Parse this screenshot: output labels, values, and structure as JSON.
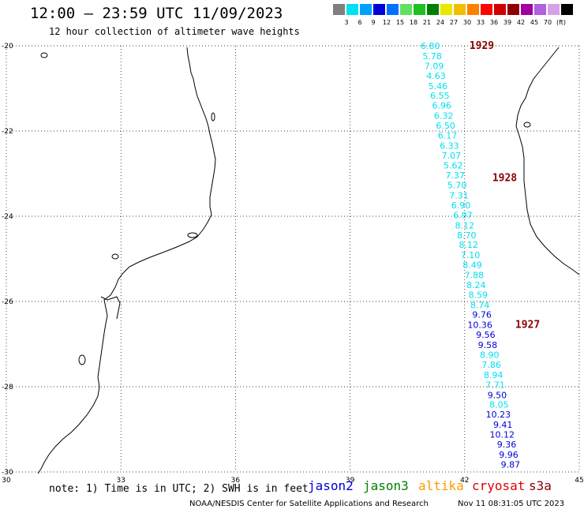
{
  "header": {
    "title": "12:00 – 23:59 UTC 11/09/2023",
    "subtitle": "12 hour collection of altimeter wave heights"
  },
  "colorbar": {
    "colors": [
      "#808080",
      "#00e0f0",
      "#00a0ff",
      "#0000d8",
      "#0070ff",
      "#60e060",
      "#20c020",
      "#008000",
      "#e8e800",
      "#f0c000",
      "#ff8000",
      "#ff0000",
      "#d00000",
      "#900000",
      "#a000a0",
      "#b060e0",
      "#d8a0e8",
      "#000000"
    ],
    "labels": [
      "3",
      "6",
      "9",
      "12",
      "15",
      "18",
      "21",
      "24",
      "27",
      "30",
      "33",
      "36",
      "39",
      "42",
      "45",
      "70",
      "(ft)"
    ]
  },
  "axes": {
    "lat_labels": [
      "-20",
      "-22",
      "-24",
      "-26",
      "-28",
      "-30"
    ],
    "lon_labels": [
      "30",
      "33",
      "36",
      "39",
      "42",
      "45"
    ],
    "lat_range": [
      -30,
      -20
    ],
    "lon_range": [
      30,
      45
    ]
  },
  "passes": [
    {
      "label": "1929",
      "lon": 42.0,
      "lat": -20.0
    },
    {
      "label": "1928",
      "lon": 42.6,
      "lat": -23.1
    },
    {
      "label": "1927",
      "lon": 43.2,
      "lat": -26.55
    }
  ],
  "wave_heights": [
    {
      "v": "6.80",
      "lon": 41.1,
      "lat": -20.0,
      "c": "#00e0f0"
    },
    {
      "v": "5.78",
      "lon": 41.15,
      "lat": -20.24,
      "c": "#00e0f0"
    },
    {
      "v": "7.09",
      "lon": 41.2,
      "lat": -20.47,
      "c": "#00e0f0"
    },
    {
      "v": "4.63",
      "lon": 41.25,
      "lat": -20.7,
      "c": "#00e0f0"
    },
    {
      "v": "5.46",
      "lon": 41.3,
      "lat": -20.94,
      "c": "#00e0f0"
    },
    {
      "v": "6.55",
      "lon": 41.35,
      "lat": -21.17,
      "c": "#00e0f0"
    },
    {
      "v": "6.96",
      "lon": 41.4,
      "lat": -21.4,
      "c": "#00e0f0"
    },
    {
      "v": "6.32",
      "lon": 41.45,
      "lat": -21.64,
      "c": "#00e0f0"
    },
    {
      "v": "6.50",
      "lon": 41.5,
      "lat": -21.87,
      "c": "#00e0f0"
    },
    {
      "v": "6.17",
      "lon": 41.55,
      "lat": -22.1,
      "c": "#00e0f0"
    },
    {
      "v": "6.33",
      "lon": 41.6,
      "lat": -22.34,
      "c": "#00e0f0"
    },
    {
      "v": "7.07",
      "lon": 41.65,
      "lat": -22.57,
      "c": "#00e0f0"
    },
    {
      "v": "5.62",
      "lon": 41.7,
      "lat": -22.81,
      "c": "#00e0f0"
    },
    {
      "v": "7.37",
      "lon": 41.75,
      "lat": -23.04,
      "c": "#00e0f0"
    },
    {
      "v": "5.70",
      "lon": 41.8,
      "lat": -23.27,
      "c": "#00e0f0"
    },
    {
      "v": "7.31",
      "lon": 41.85,
      "lat": -23.51,
      "c": "#00e0f0"
    },
    {
      "v": "6.90",
      "lon": 41.9,
      "lat": -23.74,
      "c": "#00e0f0"
    },
    {
      "v": "6.97",
      "lon": 41.95,
      "lat": -23.97,
      "c": "#00e0f0"
    },
    {
      "v": "8.12",
      "lon": 42.0,
      "lat": -24.21,
      "c": "#00e0f0"
    },
    {
      "v": "8.70",
      "lon": 42.05,
      "lat": -24.44,
      "c": "#00e0f0"
    },
    {
      "v": "8.12",
      "lon": 42.1,
      "lat": -24.67,
      "c": "#00e0f0"
    },
    {
      "v": "7.10",
      "lon": 42.15,
      "lat": -24.91,
      "c": "#00e0f0"
    },
    {
      "v": "8.49",
      "lon": 42.2,
      "lat": -25.14,
      "c": "#00e0f0"
    },
    {
      "v": "7.88",
      "lon": 42.25,
      "lat": -25.38,
      "c": "#00e0f0"
    },
    {
      "v": "8.24",
      "lon": 42.3,
      "lat": -25.61,
      "c": "#00e0f0"
    },
    {
      "v": "8.59",
      "lon": 42.35,
      "lat": -25.84,
      "c": "#00e0f0"
    },
    {
      "v": "8.74",
      "lon": 42.4,
      "lat": -26.08,
      "c": "#00e0f0"
    },
    {
      "v": "9.76",
      "lon": 42.45,
      "lat": -26.31,
      "c": "#0000d8"
    },
    {
      "v": "10.36",
      "lon": 42.4,
      "lat": -26.55,
      "c": "#0000d8"
    },
    {
      "v": "9.56",
      "lon": 42.55,
      "lat": -26.78,
      "c": "#0000d8"
    },
    {
      "v": "9.58",
      "lon": 42.6,
      "lat": -27.02,
      "c": "#0000d8"
    },
    {
      "v": "8.90",
      "lon": 42.65,
      "lat": -27.25,
      "c": "#00e0f0"
    },
    {
      "v": "7.86",
      "lon": 42.7,
      "lat": -27.48,
      "c": "#00e0f0"
    },
    {
      "v": "8.94",
      "lon": 42.75,
      "lat": -27.72,
      "c": "#00e0f0"
    },
    {
      "v": "7.71",
      "lon": 42.8,
      "lat": -27.95,
      "c": "#00e0f0"
    },
    {
      "v": "9.50",
      "lon": 42.85,
      "lat": -28.19,
      "c": "#0000d8"
    },
    {
      "v": "8.05",
      "lon": 42.9,
      "lat": -28.42,
      "c": "#00e0f0"
    },
    {
      "v": "10.23",
      "lon": 42.88,
      "lat": -28.65,
      "c": "#0000d8"
    },
    {
      "v": "9.41",
      "lon": 43.0,
      "lat": -28.89,
      "c": "#0000d8"
    },
    {
      "v": "10.12",
      "lon": 42.98,
      "lat": -29.12,
      "c": "#0000d8"
    },
    {
      "v": "9.36",
      "lon": 43.1,
      "lat": -29.35,
      "c": "#0000d8"
    },
    {
      "v": "9.96",
      "lon": 43.15,
      "lat": -29.59,
      "c": "#0000d8"
    },
    {
      "v": "9.87",
      "lon": 43.2,
      "lat": -29.82,
      "c": "#0000d8"
    }
  ],
  "note": "note: 1) Time is in UTC; 2) SWH is in feet",
  "satellites": [
    {
      "name": "jason2",
      "color": "#0000d8"
    },
    {
      "name": "jason3",
      "color": "#008000"
    },
    {
      "name": "altika",
      "color": "#ff9900"
    },
    {
      "name": "cryosat",
      "color": "#e00000"
    },
    {
      "name": "s3a",
      "color": "#8b0000"
    }
  ],
  "footer": {
    "left": "NOAA/NESDIS Center for Satellite Applications and Research",
    "right": "Nov 11 08:31:05 UTC 2023"
  }
}
